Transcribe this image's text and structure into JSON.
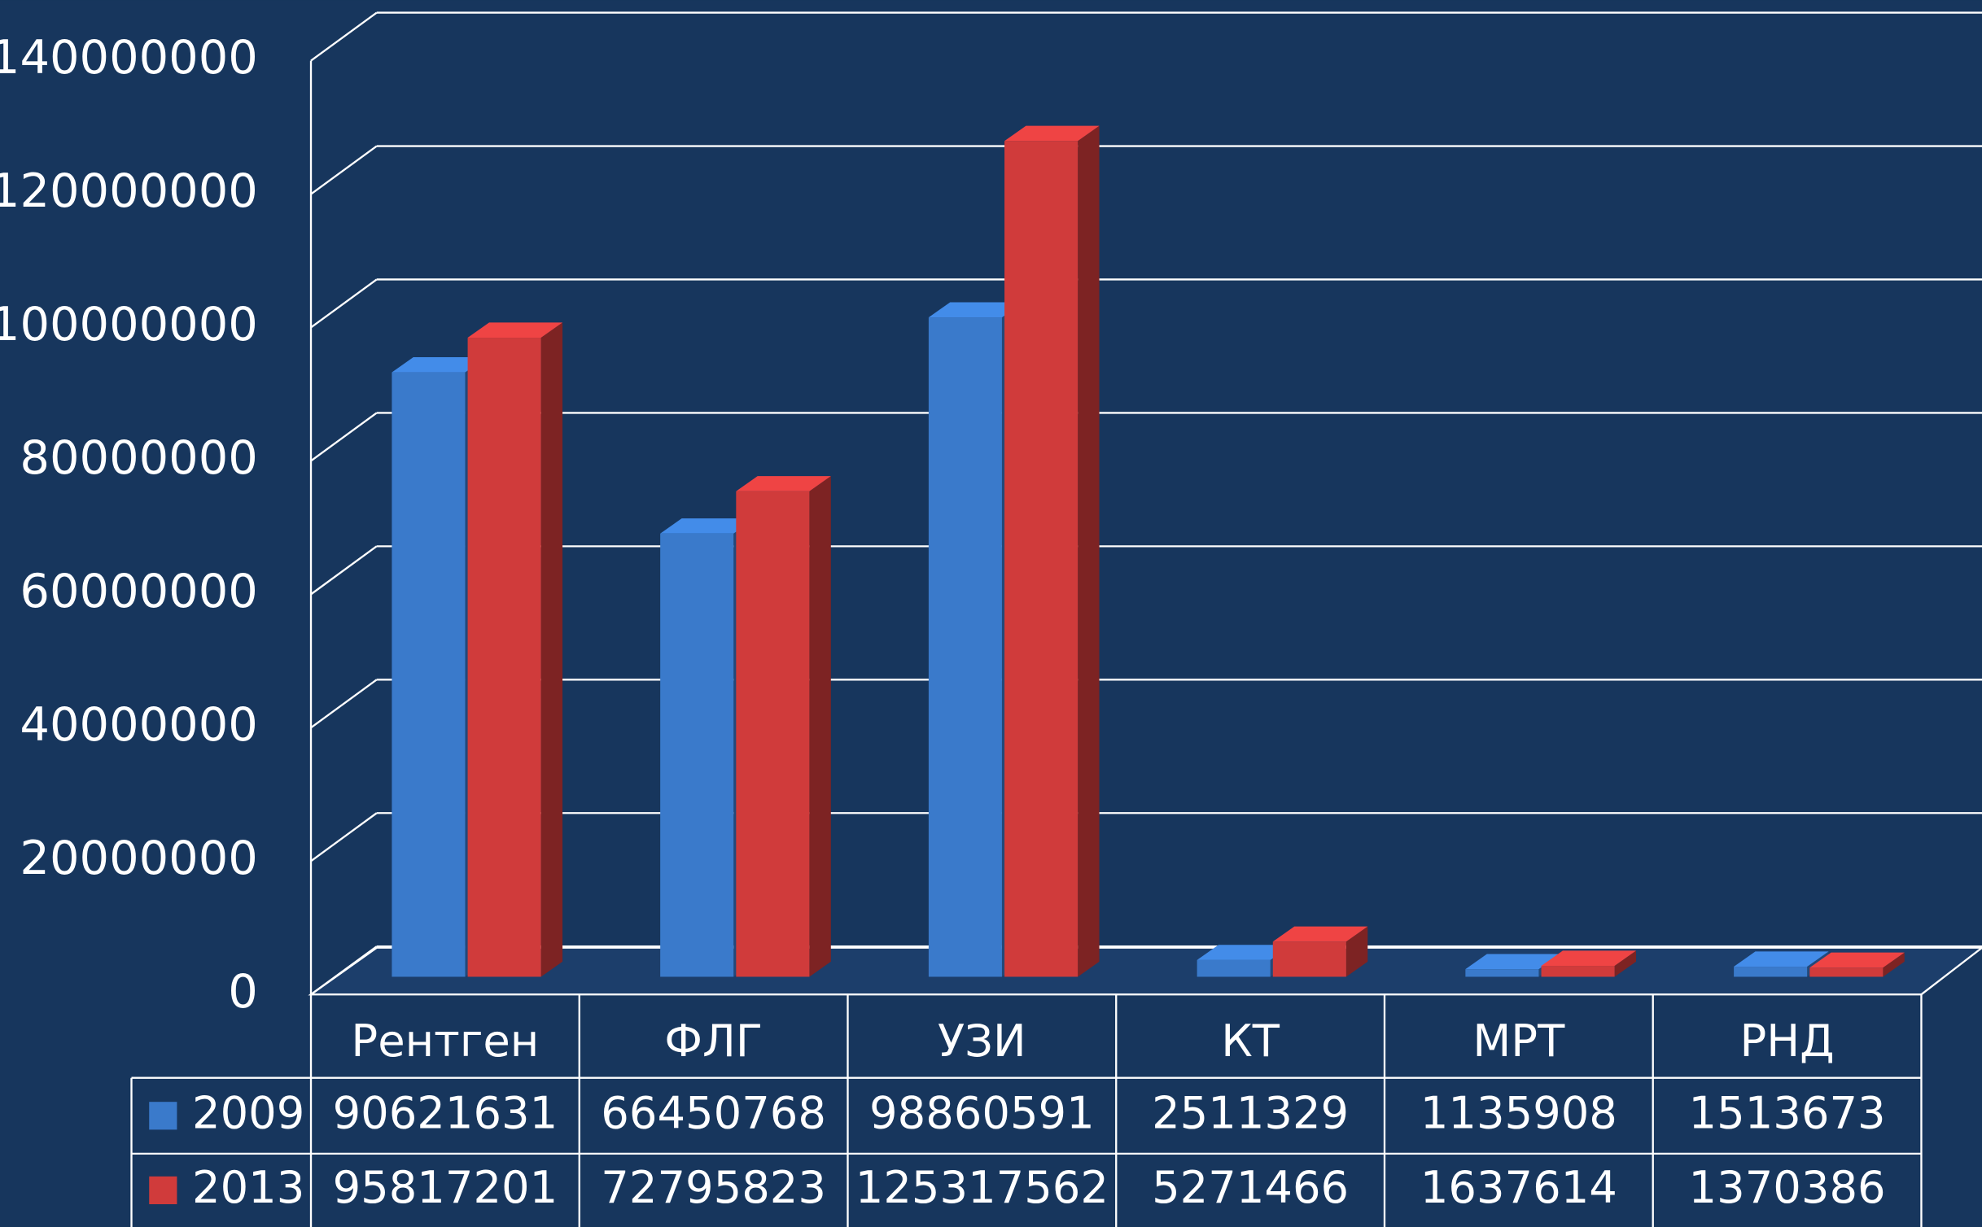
{
  "chart_data": {
    "type": "bar",
    "categories": [
      "Рентген",
      "ФЛГ",
      "УЗИ",
      "КТ",
      "МРТ",
      "РНД"
    ],
    "series": [
      {
        "name": "2009",
        "color": "#3a7acb",
        "values": [
          90621631,
          66450768,
          98860591,
          2511329,
          1135908,
          1513673
        ]
      },
      {
        "name": "2013",
        "color": "#d03b3b",
        "values": [
          95817201,
          72795823,
          125317562,
          5271466,
          1637614,
          1370386
        ]
      }
    ],
    "ylim": [
      0,
      140000000
    ],
    "yticks": [
      0,
      20000000,
      40000000,
      60000000,
      80000000,
      100000000,
      120000000,
      140000000
    ],
    "grid": true,
    "legend": "table"
  }
}
